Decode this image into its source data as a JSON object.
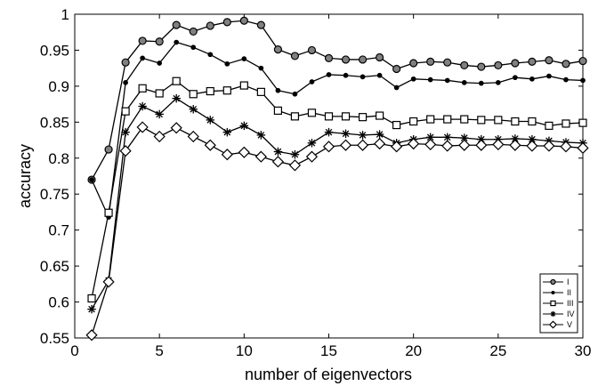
{
  "chart_data": {
    "type": "line",
    "xlabel": "number of eigenvectors",
    "ylabel": "accuracy",
    "xlim": [
      0,
      30
    ],
    "ylim": [
      0.55,
      1
    ],
    "x_ticks": [
      "0",
      "5",
      "10",
      "15",
      "20",
      "25",
      "30"
    ],
    "y_ticks": [
      "0.55",
      "0.6",
      "0.65",
      "0.7",
      "0.75",
      "0.8",
      "0.85",
      "0.9",
      "0.95",
      "1"
    ],
    "grid": false,
    "legend_position": "bottom-right",
    "line_color": "#000000",
    "x": [
      1,
      2,
      3,
      4,
      5,
      6,
      7,
      8,
      9,
      10,
      11,
      12,
      13,
      14,
      15,
      16,
      17,
      18,
      19,
      20,
      21,
      22,
      23,
      24,
      25,
      26,
      27,
      28,
      29,
      30
    ],
    "series": [
      {
        "name": "I",
        "marker": "circle",
        "values": [
          0.77,
          0.812,
          0.933,
          0.963,
          0.962,
          0.985,
          0.976,
          0.984,
          0.989,
          0.991,
          0.985,
          0.951,
          0.942,
          0.95,
          0.939,
          0.937,
          0.937,
          0.94,
          0.924,
          0.932,
          0.934,
          0.933,
          0.929,
          0.927,
          0.929,
          0.932,
          0.934,
          0.936,
          0.931,
          0.935
        ]
      },
      {
        "name": "II",
        "marker": "dot",
        "values": [
          0.77,
          0.718,
          0.905,
          0.939,
          0.932,
          0.961,
          0.954,
          0.944,
          0.931,
          0.938,
          0.925,
          0.894,
          0.889,
          0.906,
          0.916,
          0.915,
          0.913,
          0.915,
          0.898,
          0.91,
          0.909,
          0.908,
          0.905,
          0.904,
          0.905,
          0.912,
          0.91,
          0.914,
          0.909,
          0.908
        ]
      },
      {
        "name": "III",
        "marker": "square",
        "values": [
          0.605,
          0.724,
          0.865,
          0.897,
          0.89,
          0.907,
          0.889,
          0.893,
          0.894,
          0.901,
          0.892,
          0.866,
          0.858,
          0.863,
          0.858,
          0.858,
          0.857,
          0.859,
          0.846,
          0.851,
          0.854,
          0.854,
          0.854,
          0.853,
          0.853,
          0.851,
          0.851,
          0.845,
          0.848,
          0.849
        ]
      },
      {
        "name": "IV",
        "marker": "star",
        "values": [
          0.59,
          0.63,
          0.836,
          0.872,
          0.861,
          0.883,
          0.868,
          0.853,
          0.836,
          0.845,
          0.832,
          0.809,
          0.805,
          0.821,
          0.836,
          0.834,
          0.832,
          0.833,
          0.821,
          0.826,
          0.829,
          0.829,
          0.828,
          0.826,
          0.826,
          0.827,
          0.826,
          0.824,
          0.822,
          0.821
        ]
      },
      {
        "name": "V",
        "marker": "diamond",
        "values": [
          0.554,
          0.628,
          0.81,
          0.843,
          0.83,
          0.842,
          0.83,
          0.818,
          0.805,
          0.808,
          0.802,
          0.795,
          0.79,
          0.802,
          0.816,
          0.818,
          0.818,
          0.82,
          0.816,
          0.82,
          0.819,
          0.817,
          0.818,
          0.818,
          0.819,
          0.818,
          0.817,
          0.817,
          0.816,
          0.814
        ]
      }
    ]
  }
}
